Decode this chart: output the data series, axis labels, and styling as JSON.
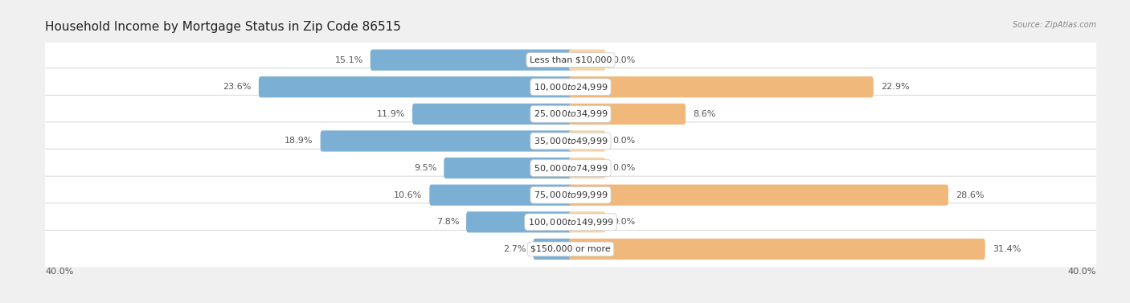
{
  "title": "Household Income by Mortgage Status in Zip Code 86515",
  "source": "Source: ZipAtlas.com",
  "categories": [
    "Less than $10,000",
    "$10,000 to $24,999",
    "$25,000 to $34,999",
    "$35,000 to $49,999",
    "$50,000 to $74,999",
    "$75,000 to $99,999",
    "$100,000 to $149,999",
    "$150,000 or more"
  ],
  "without_mortgage": [
    15.1,
    23.6,
    11.9,
    18.9,
    9.5,
    10.6,
    7.8,
    2.7
  ],
  "with_mortgage": [
    0.0,
    22.9,
    8.6,
    0.0,
    0.0,
    28.6,
    0.0,
    31.4
  ],
  "without_mortgage_color": "#7bafd4",
  "with_mortgage_color": "#f0b87a",
  "with_mortgage_zero_color": "#f5d4a8",
  "axis_limit": 40.0,
  "axis_label_left": "40.0%",
  "axis_label_right": "40.0%",
  "background_color": "#f0f0f0",
  "title_fontsize": 11,
  "label_fontsize": 8,
  "category_fontsize": 8
}
